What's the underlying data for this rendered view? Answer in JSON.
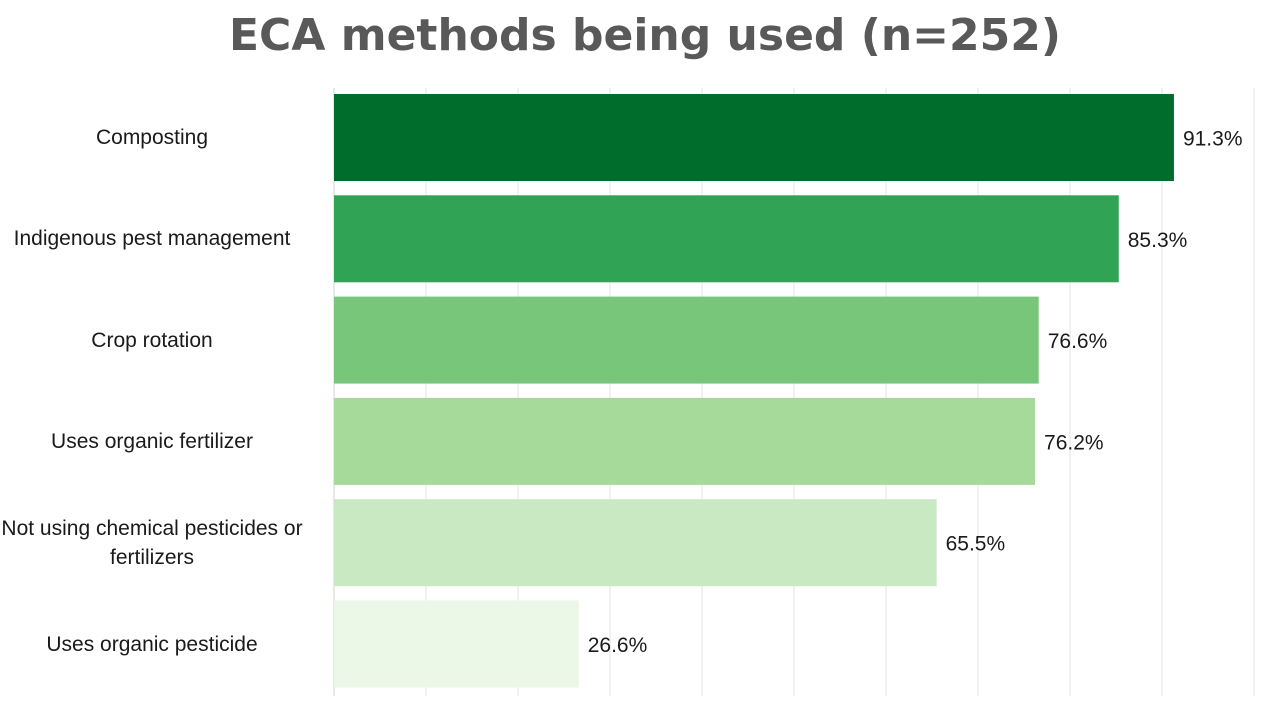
{
  "chart_data": {
    "type": "bar",
    "orientation": "horizontal",
    "title": "ECA methods being used (n=252)",
    "categories": [
      "Composting",
      "Indigenous pest management",
      "Crop rotation",
      "Uses organic fertilizer",
      "Not using chemical pesticides or fertilizers",
      "Uses organic pesticide"
    ],
    "values": [
      91.3,
      85.3,
      76.6,
      76.2,
      65.5,
      26.6
    ],
    "value_labels": [
      "91.3%",
      "85.3%",
      "76.6%",
      "76.2%",
      "65.5%",
      "26.6%"
    ],
    "bar_colors": [
      "#006d2c",
      "#31a354",
      "#78c679",
      "#a5da9b",
      "#c9e9c3",
      "#ebf7e7"
    ],
    "xlim": [
      0,
      100
    ],
    "grid": true,
    "legend": "none"
  }
}
